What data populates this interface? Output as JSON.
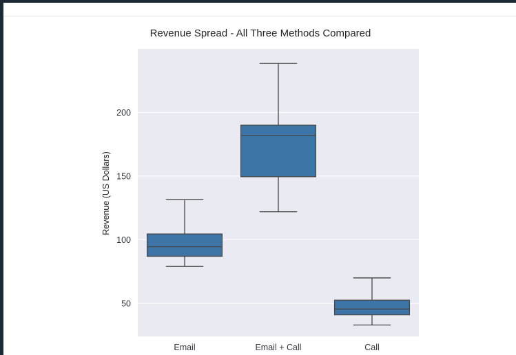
{
  "chart_data": {
    "type": "box",
    "title": "Revenue Spread - All Three Methods Compared",
    "xlabel": "",
    "ylabel": "Revenue (US Dollars)",
    "categories": [
      "Email",
      "Email + Call",
      "Call"
    ],
    "boxes": [
      {
        "category": "Email",
        "whisker_low": 79,
        "q1": 87,
        "median": 94.5,
        "q3": 104.5,
        "whisker_high": 131.5
      },
      {
        "category": "Email + Call",
        "whisker_low": 122,
        "q1": 149.5,
        "median": 182,
        "q3": 190,
        "whisker_high": 238.5
      },
      {
        "category": "Call",
        "whisker_low": 33,
        "q1": 41,
        "median": 45.5,
        "q3": 52.5,
        "whisker_high": 70
      }
    ],
    "yticks": [
      50,
      100,
      150,
      200
    ],
    "ylim": [
      24,
      250
    ],
    "grid": true,
    "colors": {
      "box_fill": "#3d75a8",
      "box_edge": "#474747",
      "plot_background": "#eaeaf2",
      "grid": "#ffffff"
    }
  }
}
